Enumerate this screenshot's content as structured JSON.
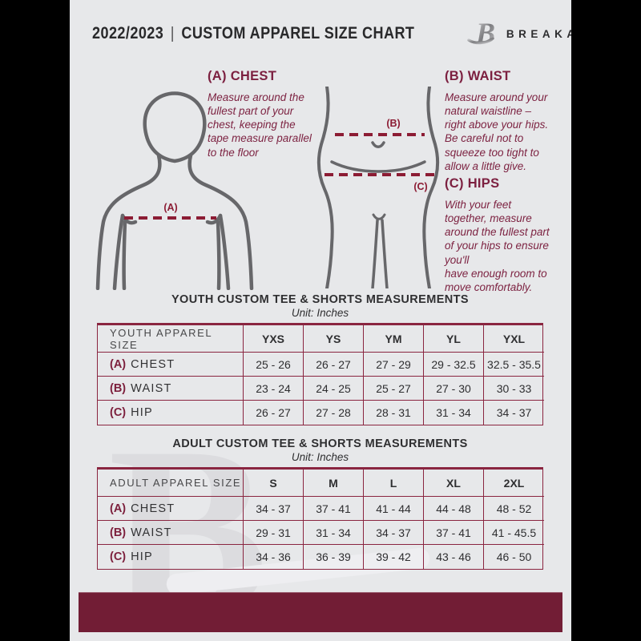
{
  "page": {
    "header": {
      "year": "2022/2023",
      "separator": "|",
      "title": "CUSTOM APPAREL SIZE CHART",
      "brand": "BREAKAWAY"
    },
    "diagram": {
      "label_a": "(A)",
      "label_b": "(B)",
      "label_c": "(C)",
      "sections": [
        {
          "heading": "(A) CHEST",
          "body": "Measure around the\nfullest part of your\nchest, keeping the\ntape measure parallel\nto the floor"
        },
        {
          "heading": "(B) WAIST",
          "body": "Measure around your\nnatural waistline –\nright above your hips.\nBe careful not to\nsqueeze too tight to\nallow a little give."
        },
        {
          "heading": "(C) HIPS",
          "body": "With your feet\ntogether, measure\naround the fullest part\nof your hips to ensure\nyou'll\nhave enough room to\nmove comfortably."
        }
      ]
    },
    "tables": [
      {
        "title": "YOUTH CUSTOM TEE & SHORTS MEASUREMENTS",
        "unit": "Unit: Inches",
        "size_label": "YOUTH APPAREL SIZE",
        "sizes": [
          "YXS",
          "YS",
          "YM",
          "YL",
          "YXL"
        ],
        "rows": [
          {
            "prefix": "(A)",
            "name": "CHEST",
            "values": [
              "25 - 26",
              "26 - 27",
              "27 - 29",
              "29 - 32.5",
              "32.5 - 35.5"
            ]
          },
          {
            "prefix": "(B)",
            "name": "WAIST",
            "values": [
              "23 - 24",
              "24 - 25",
              "25 - 27",
              "27 - 30",
              "30 - 33"
            ]
          },
          {
            "prefix": "(C)",
            "name": "HIP",
            "values": [
              "26 - 27",
              "27 - 28",
              "28 - 31",
              "31 - 34",
              "34 - 37"
            ]
          }
        ]
      },
      {
        "title": "ADULT CUSTOM TEE & SHORTS MEASUREMENTS",
        "unit": "Unit: Inches",
        "size_label": "ADULT APPAREL SIZE",
        "sizes": [
          "S",
          "M",
          "L",
          "XL",
          "2XL"
        ],
        "rows": [
          {
            "prefix": "(A)",
            "name": "CHEST",
            "values": [
              "34 - 37",
              "37 - 41",
              "41 - 44",
              "44 - 48",
              "48 - 52"
            ]
          },
          {
            "prefix": "(B)",
            "name": "WAIST",
            "values": [
              "29 - 31",
              "31 - 34",
              "34 - 37",
              "37 - 41",
              "41 - 45.5"
            ]
          },
          {
            "prefix": "(C)",
            "name": "HIP",
            "values": [
              "34 - 36",
              "36 - 39",
              "39 - 42",
              "43 - 46",
              "46 - 50"
            ]
          }
        ]
      }
    ],
    "watermark": "B",
    "colors": {
      "footer_maroon": "#721d35",
      "table_border": "#8a2540",
      "dash_line": "#8c1c34",
      "accent_text": "#7d2342",
      "page_bg": "#e7e8ea",
      "figure_outline": "#67676a"
    }
  }
}
